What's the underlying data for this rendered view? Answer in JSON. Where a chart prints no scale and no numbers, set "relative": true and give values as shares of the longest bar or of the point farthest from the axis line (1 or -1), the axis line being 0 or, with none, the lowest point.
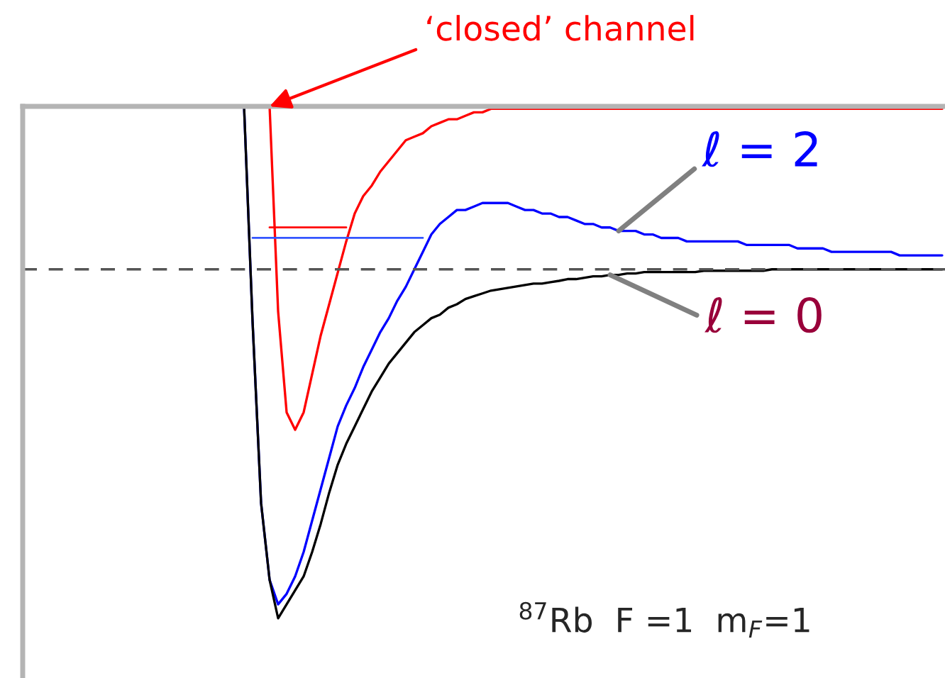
{
  "chart_data": {
    "type": "line",
    "relative": true,
    "tick_labels": false,
    "grid": false,
    "legend": false,
    "categories": [
      null,
      null,
      null,
      null,
      null,
      null,
      null,
      null,
      null,
      null,
      null,
      null,
      null,
      null,
      null,
      null,
      null,
      null,
      null,
      null,
      null,
      null,
      null,
      null,
      null,
      null,
      null,
      null,
      null,
      null,
      null,
      null,
      null,
      null,
      null,
      null,
      null,
      null,
      null,
      null,
      null,
      null,
      null,
      null,
      null,
      null,
      null,
      null,
      null,
      null,
      null,
      null,
      null,
      null,
      null,
      null,
      null,
      null,
      null,
      null,
      null,
      null,
      null,
      null,
      null,
      null,
      null,
      null,
      null,
      null,
      null,
      null,
      null,
      null,
      null,
      null,
      null,
      null,
      null,
      null,
      null,
      null,
      null,
      null,
      null,
      null,
      null,
      null,
      null,
      null,
      null,
      null,
      null,
      null,
      null,
      null,
      null,
      null,
      null,
      null,
      null,
      null,
      null,
      null,
      null,
      null,
      null,
      null,
      null
    ],
    "series": [
      {
        "name": "‘closed’ channel",
        "color": "#ff0000",
        "values": [
          null,
          null,
          null,
          null,
          null,
          null,
          null,
          null,
          null,
          null,
          null,
          null,
          null,
          null,
          null,
          null,
          null,
          null,
          null,
          null,
          null,
          null,
          null,
          null,
          null,
          null,
          null,
          null,
          null,
          0.467,
          -0.12,
          -0.41,
          -0.46,
          -0.41,
          -0.3,
          -0.19,
          -0.1,
          -0.01,
          0.08,
          0.16,
          0.21,
          0.24,
          0.28,
          0.31,
          0.34,
          0.37,
          0.38,
          0.39,
          0.41,
          0.42,
          0.43,
          0.43,
          0.44,
          0.45,
          0.45,
          0.46,
          0.46,
          0.46,
          0.46,
          0.46,
          0.46,
          0.46,
          0.46,
          0.46,
          0.46,
          0.46,
          0.46,
          0.46,
          0.46,
          0.46,
          0.46,
          0.46,
          0.46,
          0.46,
          0.46,
          0.46,
          0.46,
          0.46,
          0.46,
          0.46,
          0.46,
          0.46,
          0.46,
          0.46,
          0.46,
          0.46,
          0.46,
          0.46,
          0.46,
          0.46,
          0.46,
          0.46,
          0.46,
          0.46,
          0.46,
          0.46,
          0.46,
          0.46,
          0.46,
          0.46,
          0.46,
          0.46,
          0.46,
          0.46,
          0.46,
          0.46,
          0.46,
          0.46,
          0.46
        ]
      },
      {
        "name": "ℓ = 2",
        "color": "#0000ff",
        "values": [
          null,
          null,
          null,
          null,
          null,
          null,
          null,
          null,
          null,
          null,
          null,
          null,
          null,
          null,
          null,
          null,
          null,
          null,
          null,
          null,
          null,
          null,
          null,
          null,
          null,
          null,
          0.467,
          -0.15,
          -0.67,
          -0.89,
          -0.96,
          -0.93,
          -0.88,
          -0.81,
          -0.72,
          -0.63,
          -0.54,
          -0.45,
          -0.39,
          -0.34,
          -0.28,
          -0.23,
          -0.18,
          -0.14,
          -0.09,
          -0.05,
          0,
          0.05,
          0.1,
          0.13,
          0.15,
          0.17,
          0.17,
          0.18,
          0.19,
          0.19,
          0.19,
          0.19,
          0.18,
          0.17,
          0.17,
          0.16,
          0.16,
          0.15,
          0.15,
          0.14,
          0.13,
          0.13,
          0.12,
          0.12,
          0.11,
          0.11,
          0.11,
          0.1,
          0.1,
          0.09,
          0.09,
          0.09,
          0.08,
          0.08,
          0.08,
          0.08,
          0.08,
          0.08,
          0.08,
          0.07,
          0.07,
          0.07,
          0.07,
          0.07,
          0.07,
          0.06,
          0.06,
          0.06,
          0.06,
          0.05,
          0.05,
          0.05,
          0.05,
          0.05,
          0.05,
          0.05,
          0.05,
          0.04,
          0.04,
          0.04,
          0.04,
          0.04,
          0.04
        ]
      },
      {
        "name": "ℓ = 0",
        "color": "#000000",
        "values": [
          null,
          null,
          null,
          null,
          null,
          null,
          null,
          null,
          null,
          null,
          null,
          null,
          null,
          null,
          null,
          null,
          null,
          null,
          null,
          null,
          null,
          null,
          null,
          null,
          null,
          null,
          0.467,
          -0.15,
          -0.67,
          -0.89,
          -1,
          -0.96,
          -0.92,
          -0.88,
          -0.81,
          -0.73,
          -0.64,
          -0.56,
          -0.5,
          -0.45,
          -0.4,
          -0.35,
          -0.31,
          -0.27,
          -0.24,
          -0.21,
          -0.18,
          -0.16,
          -0.14,
          -0.13,
          -0.11,
          -0.1,
          -0.085,
          -0.077,
          -0.069,
          -0.061,
          -0.057,
          -0.053,
          -0.049,
          -0.045,
          -0.041,
          -0.041,
          -0.037,
          -0.033,
          -0.028,
          -0.028,
          -0.024,
          -0.02,
          -0.02,
          -0.016,
          -0.016,
          -0.012,
          -0.012,
          -0.008,
          -0.008,
          -0.008,
          -0.008,
          -0.008,
          -0.008,
          -0.008,
          -0.004,
          -0.004,
          -0.004,
          -0.004,
          -0.004,
          -0.004,
          -0.004,
          -0.004,
          0,
          0,
          0,
          0,
          0,
          0,
          0,
          0,
          0,
          0,
          0,
          0,
          0,
          0,
          0,
          0,
          0,
          0,
          0,
          0,
          0
        ]
      },
      {
        "color": "#ff0000",
        "values": [
          null,
          null,
          null,
          null,
          null,
          null,
          null,
          null,
          null,
          null,
          null,
          null,
          null,
          null,
          null,
          null,
          null,
          null,
          null,
          null,
          null,
          null,
          null,
          null,
          null,
          null,
          null,
          null,
          null,
          0.12,
          0.12,
          0.12,
          0.12,
          0.12,
          0.12,
          0.12,
          0.12,
          0.12,
          0.12,
          null,
          null,
          null,
          null,
          null,
          null,
          null,
          null,
          null,
          null,
          null,
          null,
          null,
          null,
          null,
          null,
          null,
          null,
          null,
          null,
          null,
          null,
          null,
          null,
          null,
          null,
          null,
          null,
          null,
          null,
          null,
          null,
          null,
          null,
          null,
          null,
          null,
          null,
          null,
          null,
          null,
          null,
          null,
          null,
          null,
          null,
          null,
          null,
          null,
          null,
          null,
          null,
          null,
          null,
          null,
          null,
          null,
          null,
          null,
          null,
          null,
          null,
          null,
          null,
          null,
          null,
          null,
          null,
          null,
          null
        ]
      },
      {
        "color": "#3355ff",
        "values": [
          null,
          null,
          null,
          null,
          null,
          null,
          null,
          null,
          null,
          null,
          null,
          null,
          null,
          null,
          null,
          null,
          null,
          null,
          null,
          null,
          null,
          null,
          null,
          null,
          null,
          null,
          null,
          0.09,
          0.09,
          0.09,
          0.09,
          0.09,
          0.09,
          0.09,
          0.09,
          0.09,
          0.09,
          0.09,
          0.09,
          0.09,
          0.09,
          0.09,
          0.09,
          0.09,
          0.09,
          0.09,
          0.09,
          0.09,
          null,
          null,
          null,
          null,
          null,
          null,
          null,
          null,
          null,
          null,
          null,
          null,
          null,
          null,
          null,
          null,
          null,
          null,
          null,
          null,
          null,
          null,
          null,
          null,
          null,
          null,
          null,
          null,
          null,
          null,
          null,
          null,
          null,
          null,
          null,
          null,
          null,
          null,
          null,
          null,
          null,
          null,
          null,
          null,
          null,
          null,
          null,
          null,
          null,
          null,
          null,
          null,
          null,
          null,
          null,
          null,
          null,
          null,
          null,
          null,
          null
        ]
      }
    ],
    "ref_lines": [
      {
        "axis": "y",
        "value": 0,
        "line_style": "dashed",
        "color": "#555555"
      }
    ],
    "annotations": [
      "$^{87}$Rb  F =1  m$_{F}$=1"
    ]
  }
}
